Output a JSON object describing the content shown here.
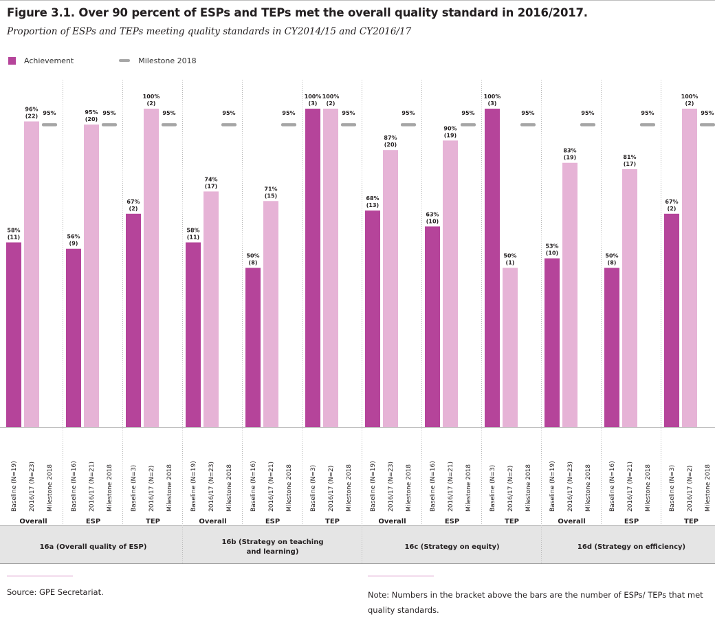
{
  "title": "Figure 3.1. Over 90 percent of ESPs and TEPs met the overall quality standard in 2016/2017.",
  "subtitle": "Proportion of ESPs and TEPs meeting quality standards in CY2014/15 and CY2016/17",
  "legend": {
    "achievement": "Achievement",
    "milestone": "Milestone 2018"
  },
  "source": "Source: GPE Secretariat.",
  "note": "Note: Numbers in the bracket above the bars are the number of ESPs/ TEPs that met quality standards.",
  "colors": {
    "baseline": "#b5449a",
    "current": "#e6b3d6",
    "milestone": "#a6a6a6",
    "divider": "#b9b9b9",
    "band": "#e5e5e5"
  },
  "chart_data": {
    "type": "bar",
    "ylim": [
      0,
      100
    ],
    "grid": false,
    "legend_position": "top-left",
    "series": [
      {
        "name": "Achievement",
        "kind": "bar"
      },
      {
        "name": "Milestone 2018",
        "kind": "marker"
      }
    ],
    "groups": [
      {
        "label": "16a (Overall quality of ESP)",
        "subgroups": [
          {
            "label": "Overall",
            "baseline": {
              "pct": 58,
              "count": 11,
              "label": "Baseline (N=19)"
            },
            "current": {
              "pct": 96,
              "count": 22,
              "label": "2016/17 (N=23)"
            },
            "milestone": {
              "pct": 95,
              "label": "Milestone 2018"
            }
          },
          {
            "label": "ESP",
            "baseline": {
              "pct": 56,
              "count": 9,
              "label": "Baseline (N=16)"
            },
            "current": {
              "pct": 95,
              "count": 20,
              "label": "2016/17 (N=21)"
            },
            "milestone": {
              "pct": 95,
              "label": "Milestone 2018"
            }
          },
          {
            "label": "TEP",
            "baseline": {
              "pct": 67,
              "count": 2,
              "label": "Baseline (N=3)"
            },
            "current": {
              "pct": 100,
              "count": 2,
              "label": "2016/17 (N=2)"
            },
            "milestone": {
              "pct": 95,
              "label": "Milestone 2018"
            }
          }
        ]
      },
      {
        "label": "16b (Strategy on teaching and learning)",
        "subgroups": [
          {
            "label": "Overall",
            "baseline": {
              "pct": 58,
              "count": 11,
              "label": "Baseline (N=19)"
            },
            "current": {
              "pct": 74,
              "count": 17,
              "label": "2016/17 (N=23)"
            },
            "milestone": {
              "pct": 95,
              "label": "Milestone 2018"
            }
          },
          {
            "label": "ESP",
            "baseline": {
              "pct": 50,
              "count": 8,
              "label": "Baseline (N=16)"
            },
            "current": {
              "pct": 71,
              "count": 15,
              "label": "2016/17 (N=21)"
            },
            "milestone": {
              "pct": 95,
              "label": "Milestone 2018"
            }
          },
          {
            "label": "TEP",
            "baseline": {
              "pct": 100,
              "count": 3,
              "label": "Baseline (N=3)"
            },
            "current": {
              "pct": 100,
              "count": 2,
              "label": "2016/17 (N=2)"
            },
            "milestone": {
              "pct": 95,
              "label": "Milestone 2018"
            }
          }
        ]
      },
      {
        "label": "16c (Strategy on equity)",
        "subgroups": [
          {
            "label": "Overall",
            "baseline": {
              "pct": 68,
              "count": 13,
              "label": "Baseline (N=19)"
            },
            "current": {
              "pct": 87,
              "count": 20,
              "label": "2016/17 (N=23)"
            },
            "milestone": {
              "pct": 95,
              "label": "Milestone 2018"
            }
          },
          {
            "label": "ESP",
            "baseline": {
              "pct": 63,
              "count": 10,
              "label": "Baseline (N=16)"
            },
            "current": {
              "pct": 90,
              "count": 19,
              "label": "2016/17 (N=21)"
            },
            "milestone": {
              "pct": 95,
              "label": "Milestone 2018"
            }
          },
          {
            "label": "TEP",
            "baseline": {
              "pct": 100,
              "count": 3,
              "label": "Baseline (N=3)"
            },
            "current": {
              "pct": 50,
              "count": 1,
              "label": "2016/17 (N=2)"
            },
            "milestone": {
              "pct": 95,
              "label": "Milestone 2018"
            }
          }
        ]
      },
      {
        "label": "16d (Strategy on efficiency)",
        "subgroups": [
          {
            "label": "Overall",
            "baseline": {
              "pct": 53,
              "count": 10,
              "label": "Baseline (N=19)"
            },
            "current": {
              "pct": 83,
              "count": 19,
              "label": "2016/17 (N=23)"
            },
            "milestone": {
              "pct": 95,
              "label": "Milestone 2018"
            }
          },
          {
            "label": "ESP",
            "baseline": {
              "pct": 50,
              "count": 8,
              "label": "Baseline (N=16)"
            },
            "current": {
              "pct": 81,
              "count": 17,
              "label": "2016/17 (N=21)"
            },
            "milestone": {
              "pct": 95,
              "label": "Milestone 2018"
            }
          },
          {
            "label": "TEP",
            "baseline": {
              "pct": 67,
              "count": 2,
              "label": "Baseline (N=3)"
            },
            "current": {
              "pct": 100,
              "count": 2,
              "label": "2016/17 (N=2)"
            },
            "milestone": {
              "pct": 95,
              "label": "Milestone 2018"
            }
          }
        ]
      }
    ]
  }
}
